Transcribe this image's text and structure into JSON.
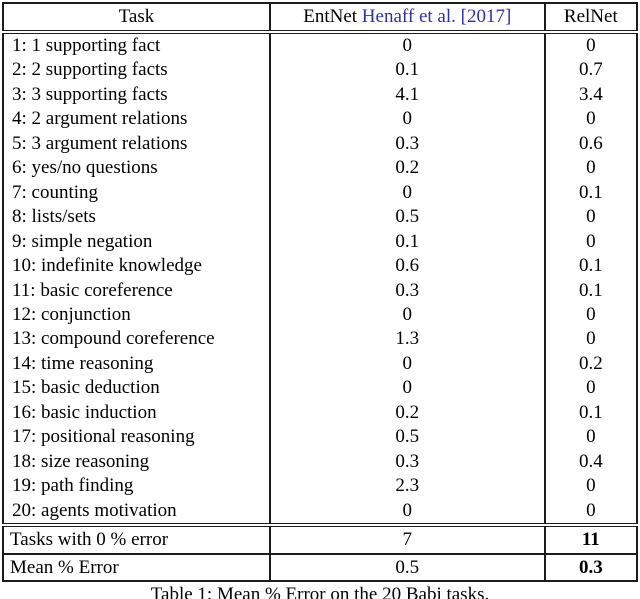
{
  "table": {
    "header": {
      "task": "Task",
      "entnet_prefix": "EntNet ",
      "entnet_citation": "Henaff et al. [2017]",
      "relnet": "RelNet"
    },
    "rows": [
      {
        "task": "1: 1 supporting fact",
        "entnet": "0",
        "relnet": "0"
      },
      {
        "task": "2: 2 supporting facts",
        "entnet": "0.1",
        "relnet": "0.7"
      },
      {
        "task": "3: 3 supporting facts",
        "entnet": "4.1",
        "relnet": "3.4"
      },
      {
        "task": "4: 2 argument relations",
        "entnet": "0",
        "relnet": "0"
      },
      {
        "task": "5: 3 argument relations",
        "entnet": "0.3",
        "relnet": "0.6"
      },
      {
        "task": "6: yes/no questions",
        "entnet": "0.2",
        "relnet": "0"
      },
      {
        "task": "7: counting",
        "entnet": "0",
        "relnet": "0.1"
      },
      {
        "task": "8: lists/sets",
        "entnet": "0.5",
        "relnet": "0"
      },
      {
        "task": "9: simple negation",
        "entnet": "0.1",
        "relnet": "0"
      },
      {
        "task": "10: indefinite knowledge",
        "entnet": "0.6",
        "relnet": "0.1"
      },
      {
        "task": "11: basic coreference",
        "entnet": "0.3",
        "relnet": "0.1"
      },
      {
        "task": "12: conjunction",
        "entnet": "0",
        "relnet": "0"
      },
      {
        "task": "13: compound coreference",
        "entnet": "1.3",
        "relnet": "0"
      },
      {
        "task": "14: time reasoning",
        "entnet": "0",
        "relnet": "0.2"
      },
      {
        "task": "15: basic deduction",
        "entnet": "0",
        "relnet": "0"
      },
      {
        "task": "16: basic induction",
        "entnet": "0.2",
        "relnet": "0.1"
      },
      {
        "task": "17: positional reasoning",
        "entnet": "0.5",
        "relnet": "0"
      },
      {
        "task": "18: size reasoning",
        "entnet": "0.3",
        "relnet": "0.4"
      },
      {
        "task": "19: path finding",
        "entnet": "2.3",
        "relnet": "0"
      },
      {
        "task": "20: agents motivation",
        "entnet": "0",
        "relnet": "0"
      }
    ],
    "summary_rows": [
      {
        "label": "Tasks with 0 % error",
        "entnet": "7",
        "relnet": "11",
        "relnet_bold": true
      },
      {
        "label": "Mean % Error",
        "entnet": "0.5",
        "relnet": "0.3",
        "relnet_bold": true
      }
    ]
  },
  "caption": "Table 1: Mean % Error on the 20 Babi tasks.",
  "chart_data": {
    "type": "table",
    "title": "Table 1: Mean % Error on the 20 Babi tasks.",
    "columns": [
      "Task",
      "EntNet Henaff et al. [2017]",
      "RelNet"
    ],
    "series": [
      {
        "name": "EntNet",
        "values": [
          0,
          0.1,
          4.1,
          0,
          0.3,
          0.2,
          0,
          0.5,
          0.1,
          0.6,
          0.3,
          0,
          1.3,
          0,
          0,
          0.2,
          0.5,
          0.3,
          2.3,
          0
        ],
        "tasks_with_0_error": 7,
        "mean_error": 0.5
      },
      {
        "name": "RelNet",
        "values": [
          0,
          0.7,
          3.4,
          0,
          0.6,
          0,
          0.1,
          0,
          0,
          0.1,
          0.1,
          0,
          0,
          0.2,
          0,
          0.1,
          0,
          0.4,
          0,
          0
        ],
        "tasks_with_0_error": 11,
        "mean_error": 0.3
      }
    ],
    "categories": [
      "1: 1 supporting fact",
      "2: 2 supporting facts",
      "3: 3 supporting facts",
      "4: 2 argument relations",
      "5: 3 argument relations",
      "6: yes/no questions",
      "7: counting",
      "8: lists/sets",
      "9: simple negation",
      "10: indefinite knowledge",
      "11: basic coreference",
      "12: conjunction",
      "13: compound coreference",
      "14: time reasoning",
      "15: basic deduction",
      "16: basic induction",
      "17: positional reasoning",
      "18: size reasoning",
      "19: path finding",
      "20: agents motivation"
    ]
  },
  "colors": {
    "citation_blue": "#2b32a8",
    "text": "#000000",
    "border": "#1c1c1c"
  }
}
